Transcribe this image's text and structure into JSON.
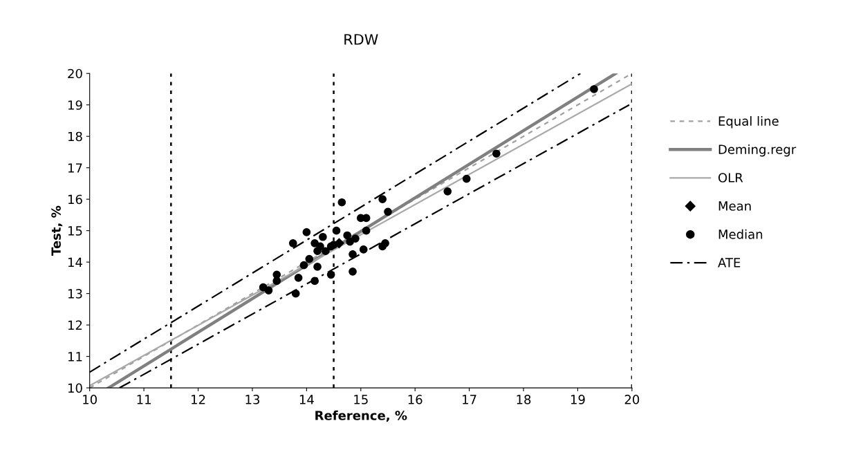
{
  "chart_data": {
    "type": "scatter",
    "title": "RDW",
    "xlabel": "Reference, %",
    "ylabel": "Test, %",
    "xlim": [
      10,
      20
    ],
    "ylim": [
      10,
      20
    ],
    "xticks": [
      10,
      11,
      12,
      13,
      14,
      15,
      16,
      17,
      18,
      19,
      20
    ],
    "yticks": [
      10,
      11,
      12,
      13,
      14,
      15,
      16,
      17,
      18,
      19,
      20
    ],
    "grid": false,
    "legend": "right",
    "ref_lines": [
      {
        "axis": "x",
        "value": 11.5,
        "color": "#000000",
        "line_style": "dotted"
      },
      {
        "axis": "x",
        "value": 14.5,
        "color": "#000000",
        "line_style": "dotted"
      },
      {
        "axis": "x",
        "value": 20,
        "color": "#000000",
        "line_style": "dotted"
      }
    ],
    "series": [
      {
        "name": "Equal line",
        "type": "line",
        "color": "#a0a0a0",
        "line_style": "dashed",
        "x": [
          10,
          20
        ],
        "values": [
          10,
          20
        ]
      },
      {
        "name": "Deming.regr",
        "type": "line",
        "color": "#808080",
        "line_style": "solid",
        "x": [
          10.35,
          19.7
        ],
        "values": [
          10,
          20
        ]
      },
      {
        "name": "OLR",
        "type": "line",
        "color": "#a8a8a8",
        "line_style": "solid",
        "x": [
          10,
          20
        ],
        "values": [
          10.07,
          19.67
        ]
      },
      {
        "name": "Mean",
        "marker": "diamond",
        "color": "#000000",
        "x": [
          14.6
        ],
        "values": [
          14.6
        ]
      },
      {
        "name": "Median",
        "marker": "circle",
        "color": "#000000",
        "x": [
          13.2,
          13.3,
          13.45,
          13.45,
          13.75,
          13.8,
          13.85,
          13.95,
          14.0,
          14.05,
          14.15,
          14.15,
          14.2,
          14.2,
          14.25,
          14.3,
          14.35,
          14.45,
          14.45,
          14.5,
          14.55,
          14.65,
          14.75,
          14.8,
          14.85,
          14.85,
          14.9,
          15.0,
          15.05,
          15.1,
          15.1,
          15.4,
          15.4,
          15.45,
          15.5,
          16.6,
          16.95,
          17.5,
          19.3
        ],
        "values": [
          13.2,
          13.1,
          13.6,
          13.4,
          14.6,
          13.0,
          13.5,
          13.9,
          14.95,
          14.1,
          14.6,
          13.4,
          13.85,
          14.35,
          14.5,
          14.8,
          14.35,
          13.6,
          14.5,
          14.55,
          15.0,
          15.9,
          14.85,
          14.65,
          13.7,
          14.25,
          14.75,
          15.4,
          14.4,
          15.0,
          15.4,
          16.0,
          14.5,
          14.6,
          15.6,
          16.25,
          16.65,
          17.45,
          19.5
        ]
      },
      {
        "name": "ATE",
        "type": "line",
        "color": "#000000",
        "line_style": "dashdot",
        "x": [
          10,
          19.05
        ],
        "values": [
          10.5,
          20
        ]
      },
      {
        "type": "line",
        "color": "#000000",
        "line_style": "dashdot",
        "x": [
          10.55,
          19.95
        ],
        "values": [
          10.0,
          19.0
        ]
      }
    ]
  }
}
